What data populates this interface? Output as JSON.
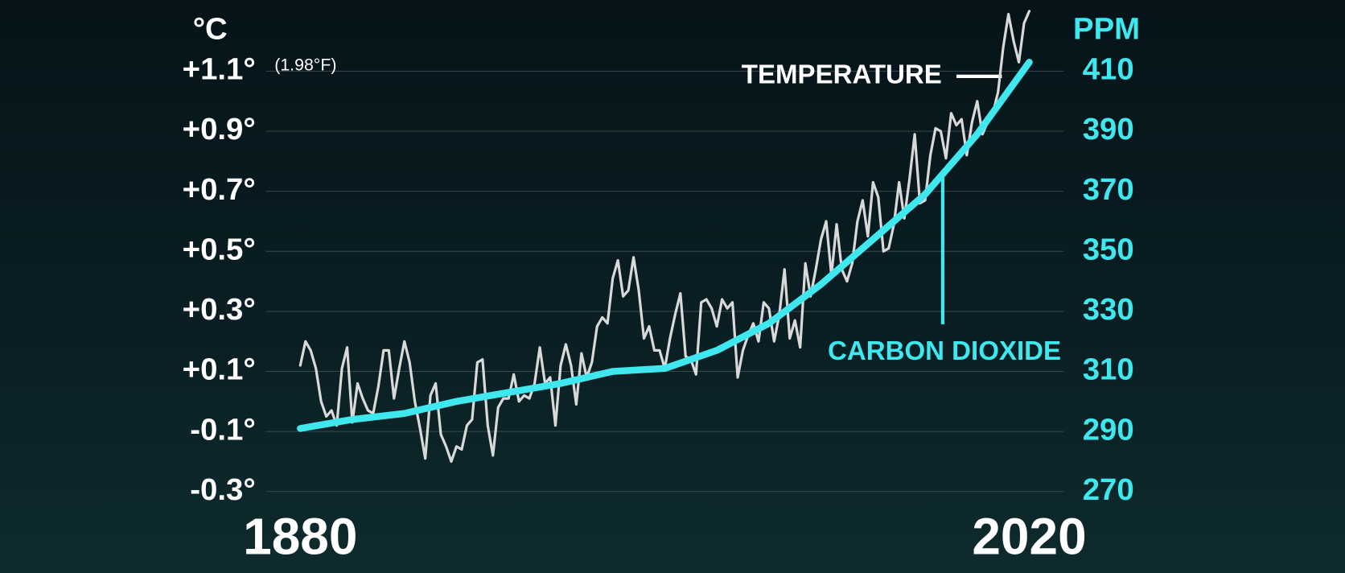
{
  "chart_data": {
    "type": "line",
    "y_unit": "°C",
    "y_note": "(1.98°F)",
    "y2_unit": "PPM",
    "xlim": [
      1873.4,
      2026.6
    ],
    "xticks": [
      1880,
      2020
    ],
    "ylim": [
      -0.3,
      1.27
    ],
    "yticks": [
      {
        "value": 1.1,
        "label": "+1.1°"
      },
      {
        "value": 0.9,
        "label": "+0.9°"
      },
      {
        "value": 0.7,
        "label": "+0.7°"
      },
      {
        "value": 0.5,
        "label": "+0.5°"
      },
      {
        "value": 0.3,
        "label": "+0.3°"
      },
      {
        "value": 0.1,
        "label": "+0.1°"
      },
      {
        "value": -0.1,
        "label": "-0.1°"
      },
      {
        "value": -0.3,
        "label": "-0.3°"
      }
    ],
    "y2lim": [
      270,
      427
    ],
    "y2ticks": [
      410,
      390,
      370,
      350,
      330,
      310,
      290,
      270
    ],
    "grid": true,
    "series": [
      {
        "name": "TEMPERATURE",
        "color": "#d9d9d9",
        "x": [
          1880,
          1881,
          1882,
          1883,
          1884,
          1885,
          1886,
          1887,
          1888,
          1889,
          1890,
          1891,
          1892,
          1893,
          1894,
          1895,
          1896,
          1897,
          1898,
          1899,
          1900,
          1901,
          1902,
          1903,
          1904,
          1905,
          1906,
          1907,
          1908,
          1909,
          1910,
          1911,
          1912,
          1913,
          1914,
          1915,
          1916,
          1917,
          1918,
          1919,
          1920,
          1921,
          1922,
          1923,
          1924,
          1925,
          1926,
          1927,
          1928,
          1929,
          1930,
          1931,
          1932,
          1933,
          1934,
          1935,
          1936,
          1937,
          1938,
          1939,
          1940,
          1941,
          1942,
          1943,
          1944,
          1945,
          1946,
          1947,
          1948,
          1949,
          1950,
          1951,
          1952,
          1953,
          1954,
          1955,
          1956,
          1957,
          1958,
          1959,
          1960,
          1961,
          1962,
          1963,
          1964,
          1965,
          1966,
          1967,
          1968,
          1969,
          1970,
          1971,
          1972,
          1973,
          1974,
          1975,
          1976,
          1977,
          1978,
          1979,
          1980,
          1981,
          1982,
          1983,
          1984,
          1985,
          1986,
          1987,
          1988,
          1989,
          1990,
          1991,
          1992,
          1993,
          1994,
          1995,
          1996,
          1997,
          1998,
          1999,
          2000,
          2001,
          2002,
          2003,
          2004,
          2005,
          2006,
          2007,
          2008,
          2009,
          2010,
          2011,
          2012,
          2013,
          2014,
          2015,
          2016,
          2017,
          2018,
          2019,
          2020
        ],
        "values": [
          0.12,
          0.2,
          0.17,
          0.11,
          0.0,
          -0.05,
          -0.03,
          -0.08,
          0.11,
          0.18,
          -0.07,
          0.06,
          0.01,
          -0.03,
          -0.04,
          0.05,
          0.17,
          0.17,
          0.01,
          0.11,
          0.2,
          0.13,
          0.0,
          -0.09,
          -0.19,
          0.02,
          0.06,
          -0.11,
          -0.15,
          -0.2,
          -0.15,
          -0.16,
          -0.08,
          -0.06,
          0.13,
          0.14,
          -0.08,
          -0.18,
          -0.02,
          0.01,
          0.01,
          0.09,
          0.0,
          0.02,
          0.01,
          0.06,
          0.18,
          0.06,
          0.08,
          -0.08,
          0.12,
          0.19,
          0.12,
          -0.01,
          0.16,
          0.08,
          0.13,
          0.25,
          0.28,
          0.26,
          0.41,
          0.47,
          0.35,
          0.37,
          0.48,
          0.37,
          0.21,
          0.25,
          0.17,
          0.17,
          0.11,
          0.21,
          0.29,
          0.36,
          0.15,
          0.14,
          0.09,
          0.33,
          0.34,
          0.31,
          0.25,
          0.34,
          0.31,
          0.33,
          0.08,
          0.17,
          0.22,
          0.26,
          0.2,
          0.33,
          0.31,
          0.2,
          0.29,
          0.44,
          0.21,
          0.27,
          0.18,
          0.46,
          0.35,
          0.44,
          0.54,
          0.6,
          0.42,
          0.59,
          0.44,
          0.4,
          0.46,
          0.6,
          0.67,
          0.55,
          0.73,
          0.68,
          0.5,
          0.51,
          0.59,
          0.73,
          0.61,
          0.74,
          0.89,
          0.66,
          0.67,
          0.82,
          0.91,
          0.9,
          0.81,
          0.96,
          0.92,
          0.94,
          0.82,
          0.93,
          1.0,
          0.89,
          0.93,
          0.96,
          1.03,
          1.18,
          1.29,
          1.2,
          1.13,
          1.26,
          1.3
        ]
      },
      {
        "name": "CARBON DIOXIDE",
        "color": "#3ee8ee",
        "axis": "y2",
        "x": [
          1880,
          1890,
          1900,
          1910,
          1920,
          1930,
          1940,
          1950,
          1960,
          1970,
          1980,
          1990,
          2000,
          2010,
          2020
        ],
        "values": [
          291,
          294,
          296,
          300,
          303,
          306,
          310,
          311,
          317,
          326,
          339,
          354,
          369,
          389,
          413
        ]
      }
    ]
  }
}
